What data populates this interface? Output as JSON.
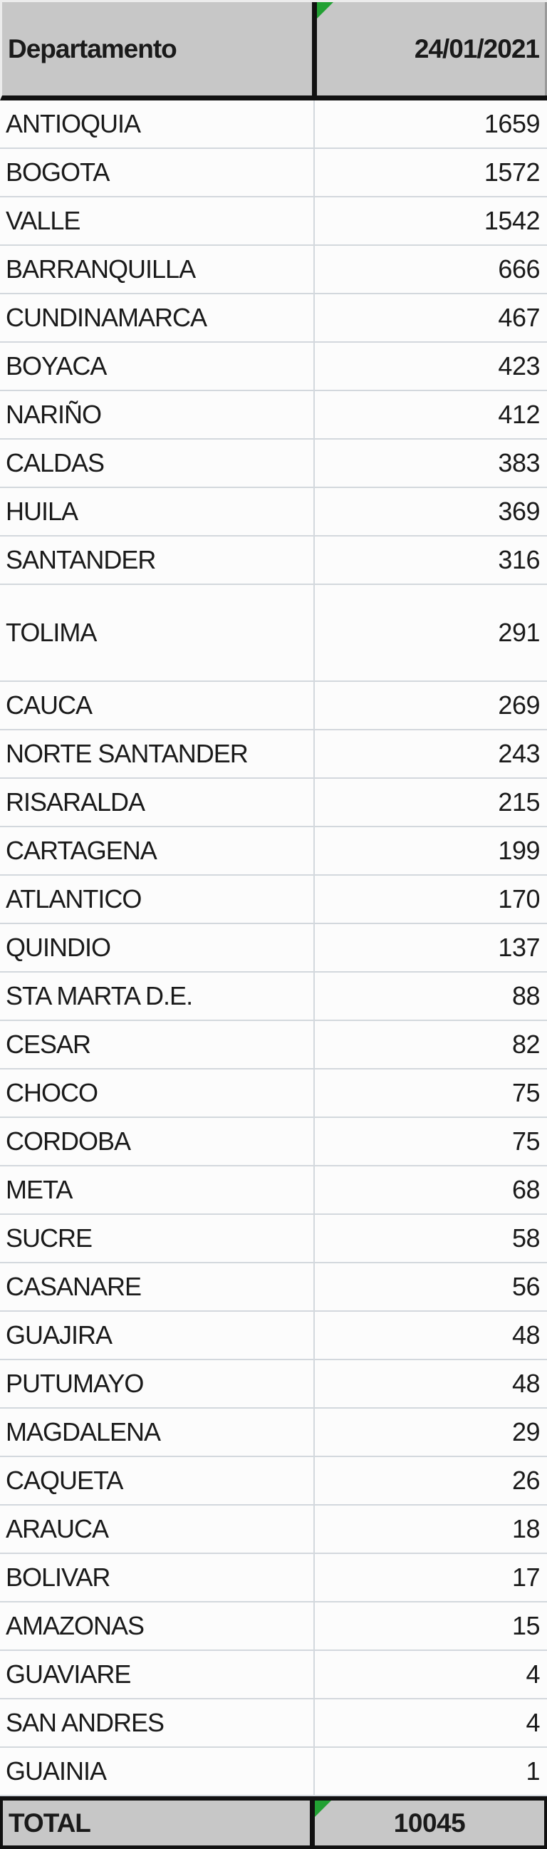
{
  "table": {
    "columns": [
      "Departamento",
      "24/01/2021"
    ],
    "rows": [
      {
        "name": "ANTIOQUIA",
        "value": 1659
      },
      {
        "name": "BOGOTA",
        "value": 1572
      },
      {
        "name": "VALLE",
        "value": 1542
      },
      {
        "name": "BARRANQUILLA",
        "value": 666
      },
      {
        "name": "CUNDINAMARCA",
        "value": 467
      },
      {
        "name": "BOYACA",
        "value": 423
      },
      {
        "name": "NARIÑO",
        "value": 412
      },
      {
        "name": "CALDAS",
        "value": 383
      },
      {
        "name": "HUILA",
        "value": 369
      },
      {
        "name": "SANTANDER",
        "value": 316
      },
      {
        "name": "TOLIMA",
        "value": 291,
        "tall": true
      },
      {
        "name": "CAUCA",
        "value": 269
      },
      {
        "name": "NORTE SANTANDER",
        "value": 243
      },
      {
        "name": "RISARALDA",
        "value": 215
      },
      {
        "name": "CARTAGENA",
        "value": 199
      },
      {
        "name": "ATLANTICO",
        "value": 170
      },
      {
        "name": "QUINDIO",
        "value": 137
      },
      {
        "name": "STA MARTA D.E.",
        "value": 88
      },
      {
        "name": "CESAR",
        "value": 82
      },
      {
        "name": "CHOCO",
        "value": 75
      },
      {
        "name": "CORDOBA",
        "value": 75
      },
      {
        "name": "META",
        "value": 68
      },
      {
        "name": "SUCRE",
        "value": 58
      },
      {
        "name": "CASANARE",
        "value": 56
      },
      {
        "name": "GUAJIRA",
        "value": 48
      },
      {
        "name": "PUTUMAYO",
        "value": 48
      },
      {
        "name": "MAGDALENA",
        "value": 29
      },
      {
        "name": "CAQUETA",
        "value": 26
      },
      {
        "name": "ARAUCA",
        "value": 18
      },
      {
        "name": "BOLIVAR",
        "value": 17
      },
      {
        "name": "AMAZONAS",
        "value": 15
      },
      {
        "name": "GUAVIARE",
        "value": 4
      },
      {
        "name": "SAN ANDRES",
        "value": 4
      },
      {
        "name": "GUAINIA",
        "value": 1
      }
    ],
    "total": {
      "label": "TOTAL",
      "value": 10045
    }
  },
  "icons": {
    "corner_flag": "green-corner-flag"
  },
  "colors": {
    "header_bg": "#c7c7c7",
    "total_bg": "#c7c7c7",
    "row_bg": "#fcfcfc",
    "grid_line": "#d3d8dd",
    "heavy_border": "#111111",
    "flag_green": "#22a033",
    "text": "#1a1a1a"
  }
}
